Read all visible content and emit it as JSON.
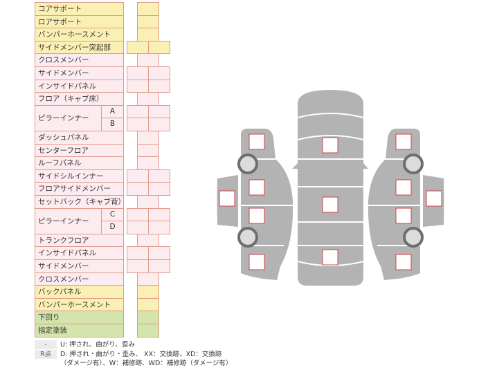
{
  "rows": [
    {
      "label": "コアサポート",
      "color": "yellow",
      "cells": "single"
    },
    {
      "label": "ロアサポート",
      "color": "yellow",
      "cells": "single"
    },
    {
      "label": "バンパーホースメント",
      "color": "yellow",
      "cells": "single"
    },
    {
      "label": "サイドメンバー突起部",
      "color": "yellow",
      "cells": "double"
    },
    {
      "label": "クロスメンバー",
      "color": "pink",
      "cells": "single"
    },
    {
      "label": "サイドメンバー",
      "color": "pink",
      "cells": "double"
    },
    {
      "label": "インサイドパネル",
      "color": "pink",
      "cells": "double"
    },
    {
      "label": "フロア（キャブ床）",
      "color": "pink",
      "cells": "single"
    },
    {
      "label": "ピラーインナー",
      "sub": "A",
      "color": "pink",
      "cells": "double"
    },
    {
      "label": "",
      "sub": "B",
      "color": "pink",
      "cells": "double"
    },
    {
      "label": "ダッシュパネル",
      "color": "pink",
      "cells": "single"
    },
    {
      "label": "センターフロア",
      "color": "pink",
      "cells": "single"
    },
    {
      "label": "ルーフパネル",
      "color": "pink",
      "cells": "single"
    },
    {
      "label": "サイドシルインナー",
      "color": "pink",
      "cells": "double"
    },
    {
      "label": "フロアサイドメンバー",
      "color": "pink",
      "cells": "double"
    },
    {
      "label": "セットバック（キャブ背）",
      "color": "pink",
      "cells": "single"
    },
    {
      "label": "ピラーインナー",
      "sub": "C",
      "color": "pink",
      "cells": "double"
    },
    {
      "label": "",
      "sub": "D",
      "color": "pink",
      "cells": "double"
    },
    {
      "label": "トランクフロア",
      "color": "pink",
      "cells": "single"
    },
    {
      "label": "インサイドパネル",
      "color": "pink",
      "cells": "double"
    },
    {
      "label": "サイドメンバー",
      "color": "pink",
      "cells": "double"
    },
    {
      "label": "クロスメンバー",
      "color": "pink",
      "cells": "single"
    },
    {
      "label": "バックパネル",
      "color": "yellow",
      "cells": "single"
    },
    {
      "label": "バンパーホースメント",
      "color": "yellow",
      "cells": "single"
    },
    {
      "label": "下回り",
      "color": "green",
      "cells": "single"
    },
    {
      "label": "指定塗装",
      "color": "green",
      "cells": "single"
    }
  ],
  "legend": {
    "key1": "-",
    "text1": "U: 押され、曲がり、歪み",
    "key2": "R点",
    "text2": "D: 押され・曲がり・歪み、 XX：交換跡、XD：交換跡",
    "text3": "（ダメージ有）、W：補修跡、WD：補修跡（ダメージ有）"
  },
  "colors": {
    "yellow": "#fbf0b4",
    "pink": "#fcebef",
    "green": "#d3e5ac",
    "border": "#e09a8a",
    "car": "#b3b3b3",
    "marker": "#d04040"
  }
}
